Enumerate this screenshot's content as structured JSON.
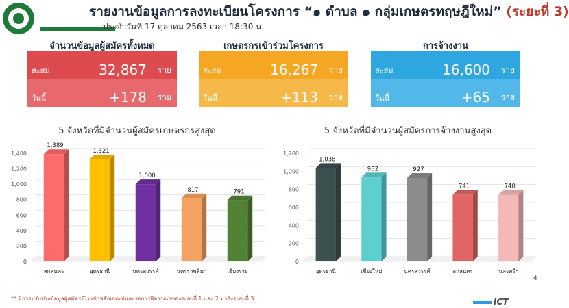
{
  "header": {
    "title": "รายงานข้อมูลการลงทะเบียนโครงการ “๑ ตำบล ๑ กลุ่มเกษตรทฤษฎีใหม่”",
    "phase": "(ระยะที่ 3)",
    "date": "ประจำวันที่ 17 ตุลาคม 2563 เวลา 18:30 น."
  },
  "cards": [
    {
      "title": "จำนวนข้อมูลผู้สมัครทั้งหมด",
      "cumulative_label": "สะสม",
      "cumulative": "32,867",
      "today_label": "วันนี้",
      "today": "+178",
      "unit": "ราย",
      "color_top": "#dd4b4f",
      "color_bottom": "#e8696d"
    },
    {
      "title": "เกษตรกรเข้าร่วมโครงการ",
      "cumulative_label": "สะสม",
      "cumulative": "16,267",
      "today_label": "วันนี้",
      "today": "+113",
      "unit": "ราย",
      "color_top": "#f5a623",
      "color_bottom": "#f7b84a"
    },
    {
      "title": "การจ้างงาน",
      "cumulative_label": "สะสม",
      "cumulative": "16,600",
      "today_label": "วันนี้",
      "today": "+65",
      "unit": "ราย",
      "color_top": "#2ea7e0",
      "color_bottom": "#52b8ea"
    }
  ],
  "chart_data": [
    {
      "type": "bar",
      "title": "5 จังหวัดที่มีจำนวนผู้สมัครเกษตรกรสูงสุด",
      "categories": [
        "สกลนคร",
        "อุดรธานี",
        "นครสวรรค์",
        "นครราชสีมา",
        "เชียงราย"
      ],
      "values": [
        1389,
        1321,
        1000,
        817,
        791
      ],
      "value_labels": [
        "1,389",
        "1,321",
        "1,000",
        "817",
        "791"
      ],
      "colors": [
        "#ff6b6b",
        "#ffc000",
        "#7030a0",
        "#f4a460",
        "#548235"
      ],
      "ylim": [
        0,
        1400
      ],
      "yticks": [
        "0",
        "200",
        "400",
        "600",
        "800",
        "1,000",
        "1,200",
        "1,400"
      ],
      "grid": true
    },
    {
      "type": "bar",
      "title": "5 จังหวัดที่มีจำนวนผู้สมัครการจ้างงานสูงสุด",
      "categories": [
        "อุดรธานี",
        "เชียงใหม่",
        "นครสวรรค์",
        "สกลนคร",
        "นครศรีฯ"
      ],
      "values": [
        1038,
        932,
        927,
        741,
        740
      ],
      "value_labels": [
        "1,038",
        "932",
        "927",
        "741",
        "740"
      ],
      "colors": [
        "#3d5050",
        "#5ecfcf",
        "#8c8c8c",
        "#e06666",
        "#f4b8b8"
      ],
      "ylim": [
        0,
        1200
      ],
      "yticks": [
        "0",
        "200",
        "400",
        "600",
        "800",
        "1,000",
        "1,200"
      ],
      "grid": true
    }
  ],
  "footnote": "** มีการปรับปรุงข้อมูลผู้สมัครที่ไม่เข้าหลักเกณฑ์และรอการพิจารณาของระยะที่ 1 และ 2 มายังระยะที่ 3",
  "page_number": "4",
  "brand": "ICT"
}
